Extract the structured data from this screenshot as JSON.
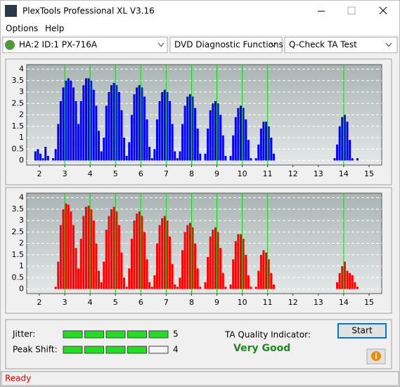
{
  "window": {
    "title": "PlexTools Professional XL V3.16"
  },
  "menu": [
    "Options",
    "Help"
  ],
  "toolbar": {
    "drive": "HA:2 ID:1  PX-716A",
    "function": "DVD Diagnostic Functions",
    "test": "Q-Check TA Test"
  },
  "chart_data": [
    {
      "type": "histogram",
      "color": "#0000ff",
      "bins": [
        1.7,
        1.8,
        1.9,
        2.0,
        2.1,
        2.2,
        2.3,
        2.4,
        2.5,
        2.6,
        2.7,
        2.8,
        2.9,
        3.0,
        3.1,
        3.2,
        3.3,
        3.4,
        3.5,
        3.6,
        3.7,
        3.8,
        3.9,
        4.0,
        4.1,
        4.2,
        4.3,
        4.4,
        4.5,
        4.6,
        4.7,
        4.8,
        4.9,
        5.0,
        5.1,
        5.2,
        5.3,
        5.4,
        5.5,
        5.6,
        5.7,
        5.8,
        5.9,
        6.0,
        6.1,
        6.2,
        6.3,
        6.4,
        6.5,
        6.6,
        6.7,
        6.8,
        6.9,
        7.0,
        7.1,
        7.2,
        7.3,
        7.4,
        7.5,
        7.6,
        7.7,
        7.8,
        7.9,
        8.0,
        8.1,
        8.2,
        8.3,
        8.4,
        8.5,
        8.6,
        8.7,
        8.8,
        8.9,
        9.0,
        9.1,
        9.2,
        9.3,
        9.4,
        9.5,
        9.6,
        9.7,
        9.8,
        9.9,
        10.0,
        10.1,
        10.2,
        10.3,
        10.4,
        10.5,
        10.6,
        10.7,
        10.8,
        10.9,
        11.0,
        11.1,
        11.2,
        11.3,
        11.4,
        11.5,
        11.6,
        11.7,
        11.8,
        11.9,
        12.0,
        12.1,
        12.2,
        12.3,
        12.4,
        12.5,
        12.6,
        12.7,
        12.8,
        12.9,
        13.0,
        13.1,
        13.2,
        13.3,
        13.4,
        13.5,
        13.6,
        13.7,
        13.8,
        13.9,
        14.0,
        14.1,
        14.2,
        14.3,
        14.4,
        14.5,
        14.6
      ],
      "values": [
        0,
        0.4,
        0.5,
        0.3,
        0.1,
        0.6,
        0.2,
        0,
        0.1,
        0.5,
        1.6,
        2.6,
        3.2,
        3.5,
        3.6,
        3.5,
        3.2,
        2.6,
        1.6,
        2.6,
        3.3,
        3.6,
        3.6,
        3.5,
        3.1,
        2.4,
        1.3,
        0.4,
        1.0,
        2.4,
        3.0,
        3.3,
        3.4,
        3.3,
        3.0,
        2.2,
        1.0,
        0.2,
        0.8,
        2.0,
        2.9,
        3.2,
        3.3,
        3.2,
        2.8,
        1.8,
        0.6,
        0.1,
        0.5,
        1.8,
        2.6,
        3.0,
        3.1,
        3.0,
        2.6,
        1.6,
        0.4,
        0.1,
        0.4,
        1.6,
        2.4,
        2.8,
        2.9,
        2.8,
        2.3,
        1.4,
        0.3,
        0,
        0.3,
        1.4,
        2.2,
        2.5,
        2.6,
        2.5,
        2.0,
        1.1,
        0.2,
        0,
        0.2,
        1.1,
        1.9,
        2.3,
        2.4,
        2.3,
        1.8,
        0.9,
        0.1,
        0,
        0.1,
        0.7,
        1.4,
        1.7,
        1.7,
        1.5,
        1.0,
        0.3,
        0,
        0,
        0,
        0,
        0,
        0,
        0,
        0,
        0,
        0,
        0,
        0,
        0,
        0,
        0,
        0,
        0,
        0,
        0,
        0,
        0,
        0,
        0,
        0.1,
        0.7,
        1.5,
        1.9,
        2.0,
        1.7,
        0.9,
        0.1,
        0,
        0.1
      ],
      "xlim": [
        1.5,
        15.5
      ],
      "ylim": [
        -0.2,
        4.2
      ],
      "xticks": [
        2,
        3,
        4,
        5,
        6,
        7,
        8,
        9,
        10,
        11,
        12,
        13,
        14,
        15
      ],
      "yticks": [
        0,
        0.5,
        1,
        1.5,
        2,
        2.5,
        3,
        3.5,
        4
      ],
      "markers": [
        3,
        4,
        5,
        6,
        7,
        8,
        9,
        10,
        11,
        14
      ],
      "marker_color": "#00e000",
      "grid": true
    },
    {
      "type": "histogram",
      "color": "#ff0000",
      "bins": [
        1.7,
        1.8,
        1.9,
        2.0,
        2.1,
        2.2,
        2.3,
        2.4,
        2.5,
        2.6,
        2.7,
        2.8,
        2.9,
        3.0,
        3.1,
        3.2,
        3.3,
        3.4,
        3.5,
        3.6,
        3.7,
        3.8,
        3.9,
        4.0,
        4.1,
        4.2,
        4.3,
        4.4,
        4.5,
        4.6,
        4.7,
        4.8,
        4.9,
        5.0,
        5.1,
        5.2,
        5.3,
        5.4,
        5.5,
        5.6,
        5.7,
        5.8,
        5.9,
        6.0,
        6.1,
        6.2,
        6.3,
        6.4,
        6.5,
        6.6,
        6.7,
        6.8,
        6.9,
        7.0,
        7.1,
        7.2,
        7.3,
        7.4,
        7.5,
        7.6,
        7.7,
        7.8,
        7.9,
        8.0,
        8.1,
        8.2,
        8.3,
        8.4,
        8.5,
        8.6,
        8.7,
        8.8,
        8.9,
        9.0,
        9.1,
        9.2,
        9.3,
        9.4,
        9.5,
        9.6,
        9.7,
        9.8,
        9.9,
        10.0,
        10.1,
        10.2,
        10.3,
        10.4,
        10.5,
        10.6,
        10.7,
        10.8,
        10.9,
        11.0,
        11.1,
        11.2,
        11.3,
        11.4,
        11.5,
        11.6,
        11.7,
        11.8,
        11.9,
        12.0,
        12.1,
        12.2,
        12.3,
        12.4,
        12.5,
        12.6,
        12.7,
        12.8,
        12.9,
        13.0,
        13.1,
        13.2,
        13.3,
        13.4,
        13.5,
        13.6,
        13.7,
        13.8,
        13.9,
        14.0,
        14.1,
        14.2,
        14.3,
        14.4,
        14.5,
        14.6
      ],
      "values": [
        0,
        0,
        0,
        0,
        0,
        0,
        0,
        0,
        0,
        0.1,
        1.2,
        2.8,
        3.5,
        3.75,
        3.7,
        3.4,
        2.8,
        1.8,
        0.9,
        2.2,
        3.2,
        3.6,
        3.65,
        3.5,
        3.0,
        2.0,
        0.8,
        0.3,
        1.2,
        2.6,
        3.2,
        3.5,
        3.6,
        3.4,
        2.8,
        1.6,
        0.5,
        0.1,
        0.9,
        2.2,
        3.0,
        3.3,
        3.4,
        3.2,
        2.5,
        1.3,
        0.3,
        0.1,
        0.6,
        2.0,
        2.8,
        3.1,
        3.2,
        3.0,
        2.3,
        1.1,
        0.2,
        0.1,
        0.5,
        1.7,
        2.5,
        2.8,
        2.9,
        2.7,
        2.0,
        0.9,
        0.1,
        0,
        0.3,
        1.4,
        2.3,
        2.6,
        2.7,
        2.5,
        1.8,
        0.7,
        0.1,
        0,
        0.2,
        1.3,
        2.1,
        2.4,
        2.4,
        2.2,
        1.5,
        0.6,
        0.1,
        0,
        0.1,
        0.8,
        1.5,
        1.7,
        1.6,
        1.3,
        0.7,
        0.2,
        0,
        0,
        0,
        0,
        0,
        0,
        0,
        0,
        0,
        0,
        0,
        0,
        0,
        0,
        0,
        0,
        0,
        0,
        0,
        0,
        0,
        0,
        0,
        0,
        0.3,
        0.7,
        1.0,
        1.2,
        0.8,
        0.7,
        0.6,
        0.3,
        0.1
      ],
      "xlim": [
        1.5,
        15.5
      ],
      "ylim": [
        -0.2,
        4.2
      ],
      "xticks": [
        2,
        3,
        4,
        5,
        6,
        7,
        8,
        9,
        10,
        11,
        12,
        13,
        14,
        15
      ],
      "yticks": [
        0,
        0.5,
        1,
        1.5,
        2,
        2.5,
        3,
        3.5,
        4
      ],
      "markers": [
        3,
        4,
        5,
        6,
        7,
        8,
        9,
        10,
        11,
        14
      ],
      "marker_color": "#00e000",
      "grid": true
    }
  ],
  "quality": {
    "rows": [
      {
        "label": "Jitter:",
        "value": 5
      },
      {
        "label": "Peak Shift:",
        "value": 4
      }
    ],
    "indicator_label": "TA Quality Indicator:",
    "indicator": "Very Good",
    "button": "Start"
  },
  "status": "Ready"
}
